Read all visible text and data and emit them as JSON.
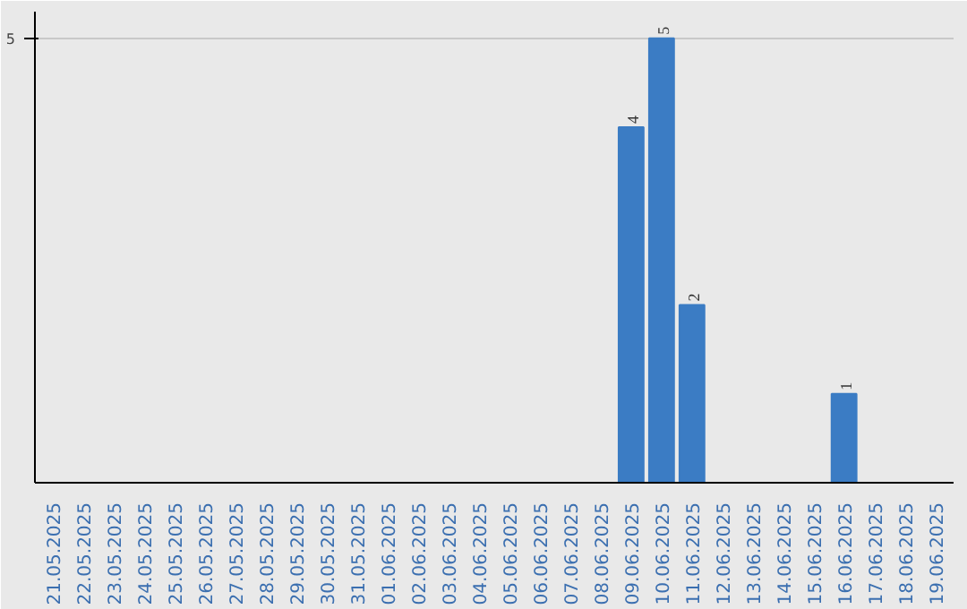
{
  "chart_data": {
    "type": "bar",
    "categories": [
      "21.05.2025",
      "22.05.2025",
      "23.05.2025",
      "24.05.2025",
      "25.05.2025",
      "26.05.2025",
      "27.05.2025",
      "28.05.2025",
      "29.05.2025",
      "30.05.2025",
      "31.05.2025",
      "01.06.2025",
      "02.06.2025",
      "03.06.2025",
      "04.06.2025",
      "05.06.2025",
      "06.06.2025",
      "07.06.2025",
      "08.06.2025",
      "09.06.2025",
      "10.06.2025",
      "11.06.2025",
      "12.06.2025",
      "13.06.2025",
      "14.06.2025",
      "15.06.2025",
      "16.06.2025",
      "17.06.2025",
      "18.06.2025",
      "19.06.2025"
    ],
    "values": [
      null,
      null,
      null,
      null,
      null,
      null,
      null,
      null,
      null,
      null,
      null,
      null,
      null,
      null,
      null,
      null,
      null,
      null,
      null,
      4,
      5,
      2,
      null,
      null,
      null,
      null,
      1,
      null,
      null,
      null
    ],
    "data_labels": true,
    "color": "#3b7cc4",
    "ylim": [
      0,
      5.3
    ],
    "yticks": [
      5
    ],
    "grid": "y"
  }
}
